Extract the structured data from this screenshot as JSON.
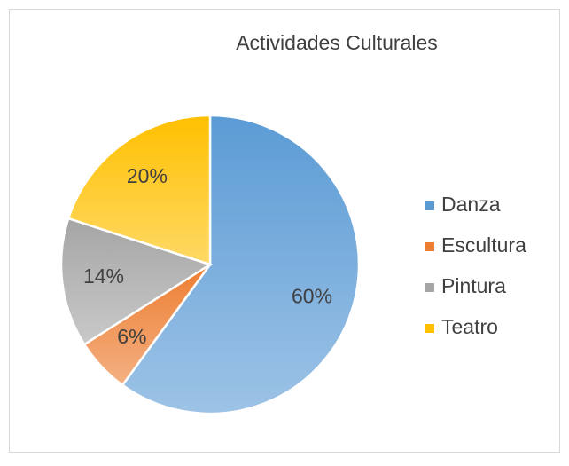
{
  "chart_data": {
    "type": "pie",
    "title": "Actividades Culturales",
    "categories": [
      "Danza",
      "Escultura",
      "Pintura",
      "Teatro"
    ],
    "values": [
      60,
      6,
      14,
      20
    ],
    "value_labels": [
      "60%",
      "6%",
      "14%",
      "20%"
    ],
    "colors": [
      "#5b9bd5",
      "#ed7d31",
      "#a5a5a5",
      "#ffc000"
    ],
    "legend": "right"
  }
}
